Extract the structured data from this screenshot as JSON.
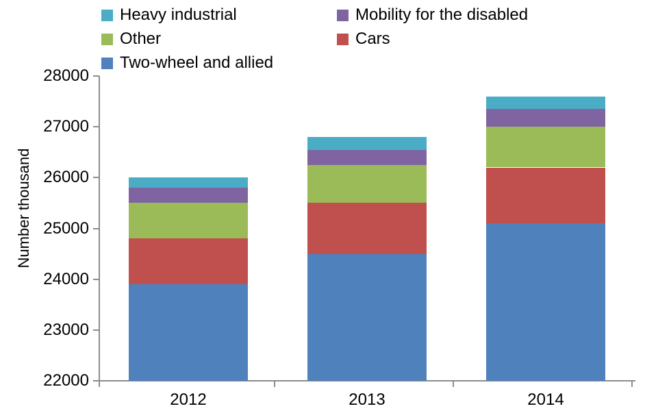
{
  "chart_data": {
    "type": "bar",
    "stacked": true,
    "title": "",
    "xlabel": "",
    "ylabel": "Number thousand",
    "categories": [
      "2012",
      "2013",
      "2014"
    ],
    "series": [
      {
        "name": "Two-wheel and allied",
        "color": "#4F81BD",
        "values": [
          23900,
          24500,
          25100
        ]
      },
      {
        "name": "Cars",
        "color": "#C0504D",
        "values": [
          900,
          1000,
          1100
        ]
      },
      {
        "name": "Other",
        "color": "#9BBB59",
        "values": [
          700,
          750,
          800
        ]
      },
      {
        "name": "Mobility for the disabled",
        "color": "#8064A2",
        "values": [
          300,
          300,
          350
        ]
      },
      {
        "name": "Heavy industrial",
        "color": "#4BACC6",
        "values": [
          200,
          250,
          250
        ]
      }
    ],
    "stack_totals": [
      26000,
      26800,
      27600
    ],
    "ylim": [
      22000,
      28000
    ],
    "yticks": [
      22000,
      23000,
      24000,
      25000,
      26000,
      27000,
      28000
    ],
    "grid": false,
    "legend_position": "top-left",
    "legend_order": [
      "Heavy industrial",
      "Mobility for the disabled",
      "Other",
      "Cars",
      "Two-wheel and allied"
    ],
    "axis_color": "#8c8c8c",
    "text_color": "#000000"
  }
}
